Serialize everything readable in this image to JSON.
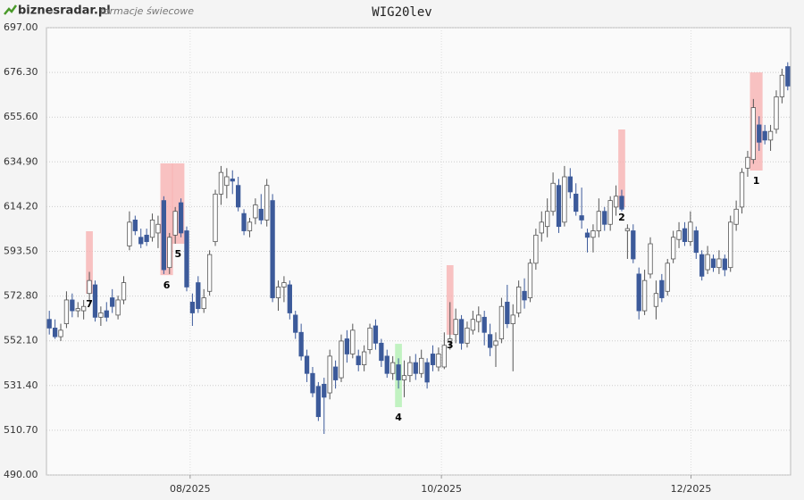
{
  "chart_data": {
    "type": "candlestick",
    "brand": "biznesradar.pl",
    "subtitle": "formacje świecowe",
    "title": "WIG20lev",
    "up_color": "#ffffff",
    "down_color": "#3c5a9a",
    "ylim": [
      490,
      697
    ],
    "yticks": [
      {
        "value": 490,
        "label": "490.00"
      },
      {
        "value": 510.7,
        "label": "510.70"
      },
      {
        "value": 531.4,
        "label": "531.40"
      },
      {
        "value": 552.1,
        "label": "552.10"
      },
      {
        "value": 572.8,
        "label": "572.80"
      },
      {
        "value": 593.5,
        "label": "593.50"
      },
      {
        "value": 614.2,
        "label": "614.20"
      },
      {
        "value": 634.9,
        "label": "634.90"
      },
      {
        "value": 655.6,
        "label": "655.60"
      },
      {
        "value": 676.3,
        "label": "676.30"
      },
      {
        "value": 697,
        "label": "697.00"
      }
    ],
    "xlim": [
      -0.5,
      129.5
    ],
    "xticks": [
      {
        "value": 24.6,
        "label": "08/2025"
      },
      {
        "value": 68.5,
        "label": "10/2025"
      },
      {
        "value": 112.1,
        "label": "12/2025"
      }
    ],
    "grid": true,
    "open": [
      562,
      558,
      554,
      560,
      571,
      566,
      566,
      574,
      578,
      563,
      566,
      572,
      564,
      571,
      596,
      608,
      600,
      601,
      600,
      602,
      617,
      586,
      601,
      616,
      603,
      570,
      579,
      567,
      575,
      598,
      620,
      624,
      627,
      624,
      611,
      603,
      609,
      613,
      608,
      617,
      572,
      577,
      578,
      564,
      556,
      545,
      537,
      531,
      532,
      528,
      540,
      535,
      553,
      546,
      545,
      541,
      548,
      559,
      551,
      545,
      537,
      541,
      534,
      536,
      542,
      537,
      542,
      546,
      540,
      540,
      552,
      555,
      562,
      551,
      557,
      561,
      563,
      555,
      550,
      553,
      570,
      560,
      565,
      575,
      572,
      588,
      602,
      605,
      612,
      624,
      607,
      628,
      620,
      610,
      602,
      600,
      603,
      612,
      606,
      614,
      619,
      603,
      603,
      583,
      566,
      583,
      568,
      580,
      575,
      590,
      599,
      604,
      598,
      603,
      592,
      585,
      590,
      586,
      590,
      586,
      606,
      614,
      632,
      636,
      652,
      649,
      645,
      650,
      665,
      679
    ],
    "high": [
      566,
      562,
      560,
      575,
      574,
      570,
      571,
      584,
      580,
      568,
      570,
      576,
      573,
      582,
      612,
      610,
      604,
      604,
      611,
      610,
      619,
      602,
      614,
      618,
      605,
      574,
      582,
      576,
      594,
      622,
      633,
      632,
      631,
      628,
      613,
      609,
      618,
      620,
      627,
      620,
      580,
      582,
      580,
      566,
      560,
      548,
      540,
      533,
      535,
      548,
      543,
      555,
      557,
      560,
      548,
      550,
      560,
      562,
      553,
      548,
      545,
      544,
      543,
      545,
      546,
      548,
      544,
      550,
      549,
      556,
      570,
      567,
      564,
      561,
      566,
      568,
      566,
      560,
      556,
      572,
      578,
      569,
      580,
      581,
      590,
      604,
      612,
      618,
      630,
      627,
      633,
      632,
      625,
      623,
      604,
      606,
      618,
      614,
      619,
      624,
      622,
      606,
      606,
      586,
      585,
      600,
      580,
      583,
      590,
      603,
      607,
      607,
      612,
      605,
      594,
      596,
      592,
      594,
      592,
      610,
      617,
      632,
      640,
      664,
      656,
      652,
      652,
      668,
      678,
      681
    ],
    "low": [
      555,
      553,
      552,
      558,
      563,
      563,
      562,
      570,
      561,
      559,
      561,
      565,
      562,
      569,
      594,
      601,
      595,
      596,
      598,
      595,
      583,
      583,
      597,
      600,
      575,
      559,
      565,
      565,
      573,
      596,
      615,
      618,
      620,
      612,
      601,
      600,
      606,
      606,
      605,
      570,
      566,
      570,
      562,
      553,
      543,
      533,
      526,
      515,
      509,
      525,
      530,
      533,
      542,
      544,
      538,
      538,
      546,
      548,
      540,
      535,
      534,
      530,
      526,
      533,
      534,
      535,
      530,
      538,
      538,
      539,
      548,
      551,
      548,
      549,
      555,
      556,
      550,
      545,
      540,
      551,
      558,
      538,
      563,
      567,
      570,
      585,
      598,
      600,
      610,
      602,
      605,
      618,
      610,
      604,
      593,
      593,
      600,
      603,
      603,
      610,
      612,
      590,
      588,
      562,
      564,
      581,
      562,
      570,
      573,
      588,
      595,
      596,
      596,
      590,
      580,
      583,
      584,
      583,
      582,
      584,
      603,
      611,
      628,
      634,
      640,
      643,
      640,
      648,
      662,
      668
    ],
    "close": [
      558,
      554,
      557,
      571,
      566,
      567,
      568,
      580,
      563,
      565,
      563,
      568,
      571,
      579,
      607,
      603,
      597,
      598,
      608,
      606,
      585,
      600,
      612,
      602,
      577,
      565,
      567,
      572,
      592,
      620,
      630,
      628,
      626,
      614,
      603,
      607,
      615,
      608,
      624,
      572,
      577,
      579,
      565,
      556,
      545,
      537,
      528,
      517,
      526,
      545,
      534,
      552,
      546,
      557,
      541,
      547,
      558,
      551,
      543,
      537,
      542,
      534,
      536,
      542,
      537,
      544,
      533,
      541,
      546,
      550,
      553,
      562,
      551,
      558,
      562,
      564,
      556,
      549,
      552,
      568,
      560,
      564,
      577,
      571,
      588,
      601,
      607,
      612,
      625,
      605,
      628,
      621,
      612,
      608,
      600,
      603,
      612,
      606,
      617,
      619,
      613,
      604,
      590,
      566,
      580,
      597,
      574,
      572,
      588,
      600,
      603,
      598,
      607,
      593,
      582,
      592,
      586,
      590,
      585,
      607,
      613,
      630,
      637,
      660,
      644,
      645,
      649,
      665,
      675,
      670
    ],
    "annotations": [
      {
        "label": "1",
        "start": 123,
        "end": 124,
        "low": 630.9,
        "high": 676.3,
        "color": "#f7b3b3"
      },
      {
        "label": "2",
        "start": 100,
        "end": 100,
        "low": 613.9,
        "high": 649.9,
        "color": "#f7b3b3"
      },
      {
        "label": "3",
        "start": 70,
        "end": 70,
        "low": 554.9,
        "high": 587.1,
        "color": "#f7b3b3"
      },
      {
        "label": "4",
        "start": 61,
        "end": 61,
        "low": 521.4,
        "high": 550.7,
        "color": "#b3f0b3"
      },
      {
        "label": "5",
        "start": 22,
        "end": 23,
        "low": 597.0,
        "high": 634.2,
        "color": "#f7b3b3"
      },
      {
        "label": "6",
        "start": 20,
        "end": 21,
        "low": 582.5,
        "high": 634.2,
        "color": "#f7b3b3"
      },
      {
        "label": "7",
        "start": 7,
        "end": 7,
        "low": 573.9,
        "high": 602.8,
        "color": "#f7b3b3"
      }
    ]
  }
}
